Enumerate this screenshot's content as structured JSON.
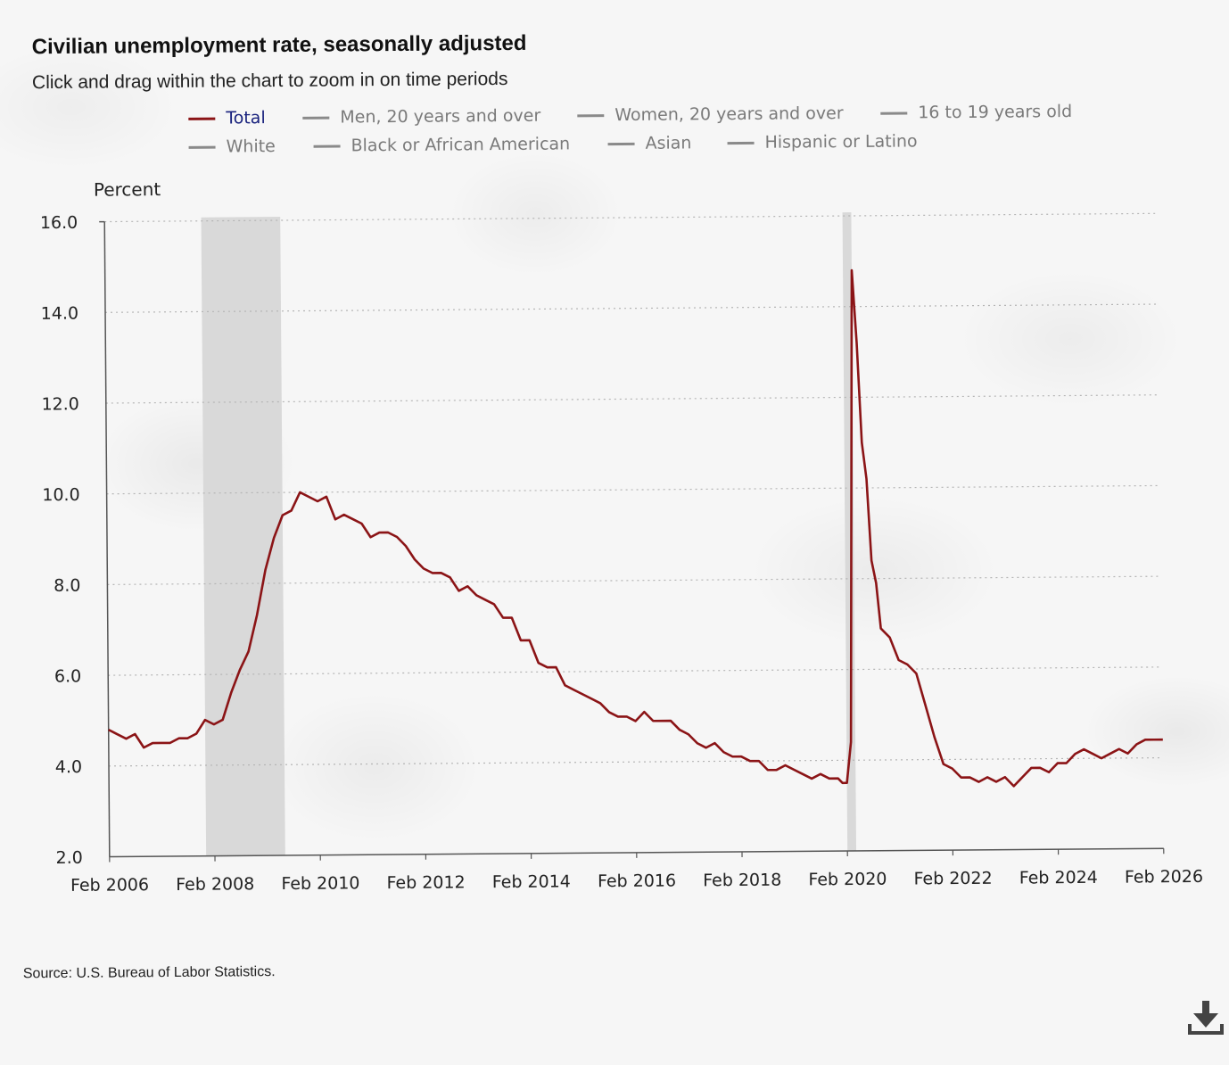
{
  "title": "Civilian unemployment rate, seasonally adjusted",
  "subtitle": "Click and drag within the chart to zoom in on time periods",
  "legend": [
    {
      "label": "Total",
      "active": true
    },
    {
      "label": "Men, 20 years and over",
      "active": false
    },
    {
      "label": "Women, 20 years and over",
      "active": false
    },
    {
      "label": "16 to 19 years old",
      "active": false
    },
    {
      "label": "White",
      "active": false
    },
    {
      "label": "Black or African American",
      "active": false
    },
    {
      "label": "Asian",
      "active": false
    },
    {
      "label": "Hispanic or Latino",
      "active": false
    }
  ],
  "source": "Source: U.S. Bureau of Labor Statistics.",
  "download_icon": "download-icon",
  "colors": {
    "total_line": "#8b1416",
    "recession_band": "#d9d9d9",
    "active_legend_text": "#1a237e",
    "inactive_legend": "#7a7a7a"
  },
  "chart_data": {
    "type": "line",
    "ylabel": "Percent",
    "ylim": [
      2.0,
      16.0
    ],
    "yticks": [
      "2.0",
      "4.0",
      "6.0",
      "8.0",
      "10.0",
      "12.0",
      "14.0",
      "16.0"
    ],
    "xlim": [
      "2006-02",
      "2026-02"
    ],
    "xticks": [
      "Feb 2006",
      "Feb 2008",
      "Feb 2010",
      "Feb 2012",
      "Feb 2014",
      "Feb 2016",
      "Feb 2018",
      "Feb 2020",
      "Feb 2022",
      "Feb 2024",
      "Feb 2026"
    ],
    "grid": "horizontal-dotted",
    "recession_shading": [
      {
        "start": "2007-12",
        "end": "2009-06"
      },
      {
        "start": "2020-02",
        "end": "2020-04"
      }
    ],
    "series": [
      {
        "name": "Total",
        "points": [
          [
            "2006-02",
            4.8
          ],
          [
            "2006-04",
            4.7
          ],
          [
            "2006-06",
            4.6
          ],
          [
            "2006-08",
            4.7
          ],
          [
            "2006-10",
            4.4
          ],
          [
            "2006-12",
            4.5
          ],
          [
            "2007-02",
            4.5
          ],
          [
            "2007-04",
            4.5
          ],
          [
            "2007-06",
            4.6
          ],
          [
            "2007-08",
            4.6
          ],
          [
            "2007-10",
            4.7
          ],
          [
            "2007-12",
            5.0
          ],
          [
            "2008-02",
            4.9
          ],
          [
            "2008-04",
            5.0
          ],
          [
            "2008-06",
            5.6
          ],
          [
            "2008-08",
            6.1
          ],
          [
            "2008-10",
            6.5
          ],
          [
            "2008-12",
            7.3
          ],
          [
            "2009-02",
            8.3
          ],
          [
            "2009-04",
            9.0
          ],
          [
            "2009-06",
            9.5
          ],
          [
            "2009-08",
            9.6
          ],
          [
            "2009-10",
            10.0
          ],
          [
            "2009-12",
            9.9
          ],
          [
            "2010-02",
            9.8
          ],
          [
            "2010-04",
            9.9
          ],
          [
            "2010-06",
            9.4
          ],
          [
            "2010-08",
            9.5
          ],
          [
            "2010-10",
            9.4
          ],
          [
            "2010-12",
            9.3
          ],
          [
            "2011-02",
            9.0
          ],
          [
            "2011-04",
            9.1
          ],
          [
            "2011-06",
            9.1
          ],
          [
            "2011-08",
            9.0
          ],
          [
            "2011-10",
            8.8
          ],
          [
            "2011-12",
            8.5
          ],
          [
            "2012-02",
            8.3
          ],
          [
            "2012-04",
            8.2
          ],
          [
            "2012-06",
            8.2
          ],
          [
            "2012-08",
            8.1
          ],
          [
            "2012-10",
            7.8
          ],
          [
            "2012-12",
            7.9
          ],
          [
            "2013-02",
            7.7
          ],
          [
            "2013-04",
            7.6
          ],
          [
            "2013-06",
            7.5
          ],
          [
            "2013-08",
            7.2
          ],
          [
            "2013-10",
            7.2
          ],
          [
            "2013-12",
            6.7
          ],
          [
            "2014-02",
            6.7
          ],
          [
            "2014-04",
            6.2
          ],
          [
            "2014-06",
            6.1
          ],
          [
            "2014-08",
            6.1
          ],
          [
            "2014-10",
            5.7
          ],
          [
            "2014-12",
            5.6
          ],
          [
            "2015-02",
            5.5
          ],
          [
            "2015-04",
            5.4
          ],
          [
            "2015-06",
            5.3
          ],
          [
            "2015-08",
            5.1
          ],
          [
            "2015-10",
            5.0
          ],
          [
            "2015-12",
            5.0
          ],
          [
            "2016-02",
            4.9
          ],
          [
            "2016-04",
            5.1
          ],
          [
            "2016-06",
            4.9
          ],
          [
            "2016-08",
            4.9
          ],
          [
            "2016-10",
            4.9
          ],
          [
            "2016-12",
            4.7
          ],
          [
            "2017-02",
            4.6
          ],
          [
            "2017-04",
            4.4
          ],
          [
            "2017-06",
            4.3
          ],
          [
            "2017-08",
            4.4
          ],
          [
            "2017-10",
            4.2
          ],
          [
            "2017-12",
            4.1
          ],
          [
            "2018-02",
            4.1
          ],
          [
            "2018-04",
            4.0
          ],
          [
            "2018-06",
            4.0
          ],
          [
            "2018-08",
            3.8
          ],
          [
            "2018-10",
            3.8
          ],
          [
            "2018-12",
            3.9
          ],
          [
            "2019-02",
            3.8
          ],
          [
            "2019-04",
            3.7
          ],
          [
            "2019-06",
            3.6
          ],
          [
            "2019-08",
            3.7
          ],
          [
            "2019-10",
            3.6
          ],
          [
            "2019-12",
            3.6
          ],
          [
            "2020-01",
            3.5
          ],
          [
            "2020-02",
            3.5
          ],
          [
            "2020-03",
            4.4
          ],
          [
            "2020-04",
            14.8
          ],
          [
            "2020-05",
            13.2
          ],
          [
            "2020-06",
            11.0
          ],
          [
            "2020-07",
            10.2
          ],
          [
            "2020-08",
            8.4
          ],
          [
            "2020-09",
            7.9
          ],
          [
            "2020-10",
            6.9
          ],
          [
            "2020-12",
            6.7
          ],
          [
            "2021-02",
            6.2
          ],
          [
            "2021-04",
            6.1
          ],
          [
            "2021-06",
            5.9
          ],
          [
            "2021-08",
            5.2
          ],
          [
            "2021-10",
            4.5
          ],
          [
            "2021-12",
            3.9
          ],
          [
            "2022-02",
            3.8
          ],
          [
            "2022-04",
            3.6
          ],
          [
            "2022-06",
            3.6
          ],
          [
            "2022-08",
            3.5
          ],
          [
            "2022-10",
            3.6
          ],
          [
            "2022-12",
            3.5
          ],
          [
            "2023-02",
            3.6
          ],
          [
            "2023-04",
            3.4
          ],
          [
            "2023-06",
            3.6
          ],
          [
            "2023-08",
            3.8
          ],
          [
            "2023-10",
            3.8
          ],
          [
            "2023-12",
            3.7
          ],
          [
            "2024-02",
            3.9
          ],
          [
            "2024-04",
            3.9
          ],
          [
            "2024-06",
            4.1
          ],
          [
            "2024-08",
            4.2
          ],
          [
            "2024-10",
            4.1
          ],
          [
            "2024-12",
            4.0
          ],
          [
            "2025-02",
            4.1
          ],
          [
            "2025-04",
            4.2
          ],
          [
            "2025-06",
            4.1
          ],
          [
            "2025-08",
            4.3
          ],
          [
            "2025-10",
            4.4
          ],
          [
            "2025-12",
            4.4
          ],
          [
            "2026-02",
            4.4
          ]
        ]
      }
    ]
  }
}
